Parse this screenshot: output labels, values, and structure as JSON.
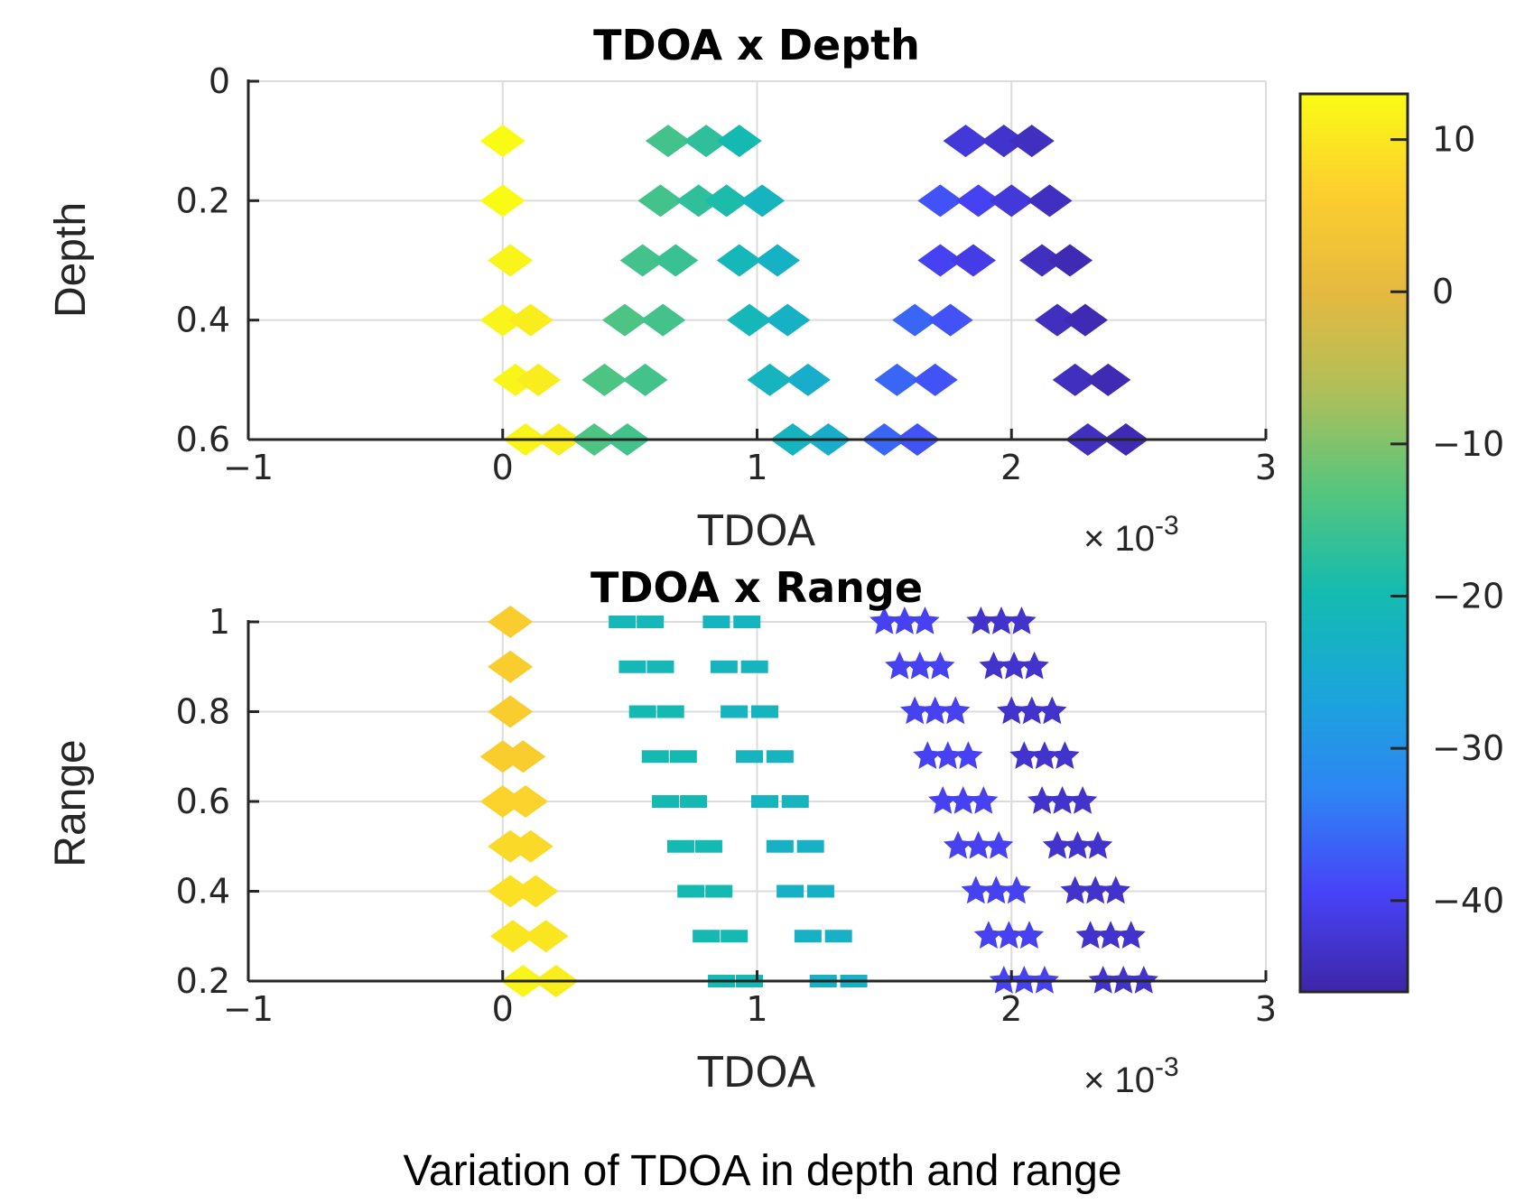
{
  "caption": "Variation of TDOA in depth and range",
  "colormap": [
    "#3e26a8",
    "#4743f8",
    "#2e85f4",
    "#1aa6da",
    "#14bbb0",
    "#55c57e",
    "#aebf5a",
    "#e5b940",
    "#fcce2e",
    "#f9fb15"
  ],
  "colorbar": {
    "min": -46,
    "max": 13,
    "ticks": [
      10,
      0,
      -10,
      -20,
      -30,
      -40
    ]
  },
  "chart_data": [
    {
      "type": "scatter",
      "title": "TDOA x Depth",
      "xlabel": "TDOA",
      "ylabel": "Depth",
      "x_multiplier": "× 10",
      "x_exponent": "-3",
      "xlim": [
        -1,
        3
      ],
      "ylim": [
        0,
        0.6
      ],
      "y_reversed": true,
      "xticks": [
        -1,
        0,
        1,
        2,
        3
      ],
      "yticks": [
        0,
        0.2,
        0.4,
        0.6
      ],
      "ytick_labels": [
        "0",
        "0.2",
        "0.4",
        "0.6"
      ],
      "grid": true,
      "marker": "diamond",
      "rows": [
        {
          "y": 0.1,
          "points": [
            {
              "x": 0.0,
              "c": 13
            },
            {
              "x": 0.65,
              "c": -15
            },
            {
              "x": 0.8,
              "c": -17
            },
            {
              "x": 0.93,
              "c": -20
            },
            {
              "x": 1.82,
              "c": -42
            },
            {
              "x": 1.97,
              "c": -43
            },
            {
              "x": 2.08,
              "c": -44
            }
          ]
        },
        {
          "y": 0.2,
          "points": [
            {
              "x": 0.0,
              "c": 13
            },
            {
              "x": 0.62,
              "c": -15
            },
            {
              "x": 0.77,
              "c": -17
            },
            {
              "x": 0.88,
              "c": -19
            },
            {
              "x": 1.02,
              "c": -22
            },
            {
              "x": 1.72,
              "c": -38
            },
            {
              "x": 1.87,
              "c": -40
            },
            {
              "x": 2.0,
              "c": -42
            },
            {
              "x": 2.15,
              "c": -44
            }
          ]
        },
        {
          "y": 0.3,
          "points": [
            {
              "x": 0.03,
              "c": 12
            },
            {
              "x": 0.55,
              "c": -15
            },
            {
              "x": 0.68,
              "c": -16
            },
            {
              "x": 0.93,
              "c": -21
            },
            {
              "x": 1.08,
              "c": -23
            },
            {
              "x": 1.72,
              "c": -40
            },
            {
              "x": 1.85,
              "c": -41
            },
            {
              "x": 2.12,
              "c": -44
            },
            {
              "x": 2.23,
              "c": -45
            }
          ]
        },
        {
          "y": 0.4,
          "points": [
            {
              "x": 0.0,
              "c": 12
            },
            {
              "x": 0.11,
              "c": 11
            },
            {
              "x": 0.48,
              "c": -14
            },
            {
              "x": 0.63,
              "c": -15
            },
            {
              "x": 0.97,
              "c": -21
            },
            {
              "x": 1.12,
              "c": -23
            },
            {
              "x": 1.62,
              "c": -36
            },
            {
              "x": 1.76,
              "c": -38
            },
            {
              "x": 2.18,
              "c": -44
            },
            {
              "x": 2.29,
              "c": -45
            }
          ]
        },
        {
          "y": 0.5,
          "points": [
            {
              "x": 0.05,
              "c": 12
            },
            {
              "x": 0.14,
              "c": 11
            },
            {
              "x": 0.4,
              "c": -14
            },
            {
              "x": 0.56,
              "c": -15
            },
            {
              "x": 1.05,
              "c": -22
            },
            {
              "x": 1.2,
              "c": -24
            },
            {
              "x": 1.55,
              "c": -36
            },
            {
              "x": 1.7,
              "c": -38
            },
            {
              "x": 2.25,
              "c": -44
            },
            {
              "x": 2.38,
              "c": -45
            }
          ]
        },
        {
          "y": 0.6,
          "points": [
            {
              "x": 0.09,
              "c": 12
            },
            {
              "x": 0.22,
              "c": 11
            },
            {
              "x": 0.36,
              "c": -14
            },
            {
              "x": 0.49,
              "c": -15
            },
            {
              "x": 1.14,
              "c": -22
            },
            {
              "x": 1.28,
              "c": -24
            },
            {
              "x": 1.5,
              "c": -36
            },
            {
              "x": 1.63,
              "c": -38
            },
            {
              "x": 2.3,
              "c": -44
            },
            {
              "x": 2.45,
              "c": -45
            }
          ]
        }
      ]
    },
    {
      "type": "scatter",
      "title": "TDOA x Range",
      "xlabel": "TDOA",
      "ylabel": "Range",
      "x_multiplier": "× 10",
      "x_exponent": "-3",
      "xlim": [
        -1,
        3
      ],
      "ylim": [
        0.2,
        1
      ],
      "y_reversed": false,
      "xticks": [
        -1,
        0,
        1,
        2,
        3
      ],
      "yticks": [
        0.2,
        0.4,
        0.6,
        0.8,
        1
      ],
      "ytick_labels": [
        "0.2",
        "0.4",
        "0.6",
        "0.8",
        "1"
      ],
      "grid": true,
      "groups": [
        {
          "marker": "diamond",
          "rows": [
            {
              "y": 1.0,
              "points": [
                {
                  "x": 0.03,
                  "c": 6
                }
              ]
            },
            {
              "y": 0.9,
              "points": [
                {
                  "x": 0.03,
                  "c": 6
                }
              ]
            },
            {
              "y": 0.8,
              "points": [
                {
                  "x": 0.03,
                  "c": 6
                }
              ]
            },
            {
              "y": 0.7,
              "points": [
                {
                  "x": 0.0,
                  "c": 6
                },
                {
                  "x": 0.08,
                  "c": 6
                }
              ]
            },
            {
              "y": 0.6,
              "points": [
                {
                  "x": 0.0,
                  "c": 7
                },
                {
                  "x": 0.09,
                  "c": 7
                }
              ]
            },
            {
              "y": 0.5,
              "points": [
                {
                  "x": 0.03,
                  "c": 8
                },
                {
                  "x": 0.11,
                  "c": 8
                }
              ]
            },
            {
              "y": 0.4,
              "points": [
                {
                  "x": 0.03,
                  "c": 9
                },
                {
                  "x": 0.13,
                  "c": 9
                }
              ]
            },
            {
              "y": 0.3,
              "points": [
                {
                  "x": 0.04,
                  "c": 10
                },
                {
                  "x": 0.17,
                  "c": 10
                }
              ]
            },
            {
              "y": 0.2,
              "points": [
                {
                  "x": 0.08,
                  "c": 12
                },
                {
                  "x": 0.21,
                  "c": 11
                }
              ]
            }
          ]
        },
        {
          "marker": "square",
          "rows": [
            {
              "y": 1.0,
              "points": [
                {
                  "x": 0.47,
                  "c": -21
                },
                {
                  "x": 0.58,
                  "c": -21
                },
                {
                  "x": 0.84,
                  "c": -22
                },
                {
                  "x": 0.96,
                  "c": -22
                }
              ]
            },
            {
              "y": 0.9,
              "points": [
                {
                  "x": 0.51,
                  "c": -21
                },
                {
                  "x": 0.62,
                  "c": -21
                },
                {
                  "x": 0.87,
                  "c": -22
                },
                {
                  "x": 0.99,
                  "c": -22
                }
              ]
            },
            {
              "y": 0.8,
              "points": [
                {
                  "x": 0.55,
                  "c": -20
                },
                {
                  "x": 0.66,
                  "c": -20
                },
                {
                  "x": 0.91,
                  "c": -22
                },
                {
                  "x": 1.03,
                  "c": -22
                }
              ]
            },
            {
              "y": 0.7,
              "points": [
                {
                  "x": 0.6,
                  "c": -20
                },
                {
                  "x": 0.71,
                  "c": -20
                },
                {
                  "x": 0.97,
                  "c": -22
                },
                {
                  "x": 1.09,
                  "c": -22
                }
              ]
            },
            {
              "y": 0.6,
              "points": [
                {
                  "x": 0.64,
                  "c": -20
                },
                {
                  "x": 0.75,
                  "c": -20
                },
                {
                  "x": 1.03,
                  "c": -22
                },
                {
                  "x": 1.15,
                  "c": -22
                }
              ]
            },
            {
              "y": 0.5,
              "points": [
                {
                  "x": 0.7,
                  "c": -20
                },
                {
                  "x": 0.81,
                  "c": -20
                },
                {
                  "x": 1.09,
                  "c": -23
                },
                {
                  "x": 1.21,
                  "c": -23
                }
              ]
            },
            {
              "y": 0.4,
              "points": [
                {
                  "x": 0.74,
                  "c": -20
                },
                {
                  "x": 0.85,
                  "c": -20
                },
                {
                  "x": 1.13,
                  "c": -23
                },
                {
                  "x": 1.25,
                  "c": -23
                }
              ]
            },
            {
              "y": 0.3,
              "points": [
                {
                  "x": 0.8,
                  "c": -20
                },
                {
                  "x": 0.91,
                  "c": -20
                },
                {
                  "x": 1.2,
                  "c": -23
                },
                {
                  "x": 1.32,
                  "c": -23
                }
              ]
            },
            {
              "y": 0.2,
              "points": [
                {
                  "x": 0.86,
                  "c": -20
                },
                {
                  "x": 0.97,
                  "c": -20
                },
                {
                  "x": 1.26,
                  "c": -23
                },
                {
                  "x": 1.38,
                  "c": -23
                }
              ]
            }
          ]
        },
        {
          "marker": "star",
          "rows": [
            {
              "y": 1.0,
              "points": [
                {
                  "x": 1.5,
                  "c": -40
                },
                {
                  "x": 1.58,
                  "c": -40
                },
                {
                  "x": 1.66,
                  "c": -40
                },
                {
                  "x": 1.88,
                  "c": -43
                },
                {
                  "x": 1.96,
                  "c": -43
                },
                {
                  "x": 2.04,
                  "c": -43
                }
              ]
            },
            {
              "y": 0.9,
              "points": [
                {
                  "x": 1.56,
                  "c": -40
                },
                {
                  "x": 1.64,
                  "c": -40
                },
                {
                  "x": 1.72,
                  "c": -40
                },
                {
                  "x": 1.93,
                  "c": -43
                },
                {
                  "x": 2.01,
                  "c": -43
                },
                {
                  "x": 2.09,
                  "c": -43
                }
              ]
            },
            {
              "y": 0.8,
              "points": [
                {
                  "x": 1.62,
                  "c": -40
                },
                {
                  "x": 1.7,
                  "c": -40
                },
                {
                  "x": 1.78,
                  "c": -40
                },
                {
                  "x": 2.0,
                  "c": -43
                },
                {
                  "x": 2.08,
                  "c": -43
                },
                {
                  "x": 2.16,
                  "c": -43
                }
              ]
            },
            {
              "y": 0.7,
              "points": [
                {
                  "x": 1.67,
                  "c": -40
                },
                {
                  "x": 1.75,
                  "c": -40
                },
                {
                  "x": 1.83,
                  "c": -40
                },
                {
                  "x": 2.05,
                  "c": -43
                },
                {
                  "x": 2.13,
                  "c": -43
                },
                {
                  "x": 2.21,
                  "c": -43
                }
              ]
            },
            {
              "y": 0.6,
              "points": [
                {
                  "x": 1.73,
                  "c": -40
                },
                {
                  "x": 1.81,
                  "c": -40
                },
                {
                  "x": 1.89,
                  "c": -40
                },
                {
                  "x": 2.12,
                  "c": -43
                },
                {
                  "x": 2.2,
                  "c": -43
                },
                {
                  "x": 2.28,
                  "c": -43
                }
              ]
            },
            {
              "y": 0.5,
              "points": [
                {
                  "x": 1.79,
                  "c": -40
                },
                {
                  "x": 1.87,
                  "c": -40
                },
                {
                  "x": 1.95,
                  "c": -40
                },
                {
                  "x": 2.18,
                  "c": -43
                },
                {
                  "x": 2.26,
                  "c": -43
                },
                {
                  "x": 2.34,
                  "c": -43
                }
              ]
            },
            {
              "y": 0.4,
              "points": [
                {
                  "x": 1.86,
                  "c": -40
                },
                {
                  "x": 1.94,
                  "c": -40
                },
                {
                  "x": 2.02,
                  "c": -40
                },
                {
                  "x": 2.25,
                  "c": -43
                },
                {
                  "x": 2.33,
                  "c": -43
                },
                {
                  "x": 2.41,
                  "c": -43
                }
              ]
            },
            {
              "y": 0.3,
              "points": [
                {
                  "x": 1.91,
                  "c": -40
                },
                {
                  "x": 1.99,
                  "c": -40
                },
                {
                  "x": 2.07,
                  "c": -40
                },
                {
                  "x": 2.31,
                  "c": -43
                },
                {
                  "x": 2.39,
                  "c": -43
                },
                {
                  "x": 2.47,
                  "c": -43
                }
              ]
            },
            {
              "y": 0.2,
              "points": [
                {
                  "x": 1.97,
                  "c": -40
                },
                {
                  "x": 2.05,
                  "c": -40
                },
                {
                  "x": 2.13,
                  "c": -40
                },
                {
                  "x": 2.36,
                  "c": -43
                },
                {
                  "x": 2.44,
                  "c": -43
                },
                {
                  "x": 2.52,
                  "c": -43
                }
              ]
            }
          ]
        }
      ]
    }
  ]
}
